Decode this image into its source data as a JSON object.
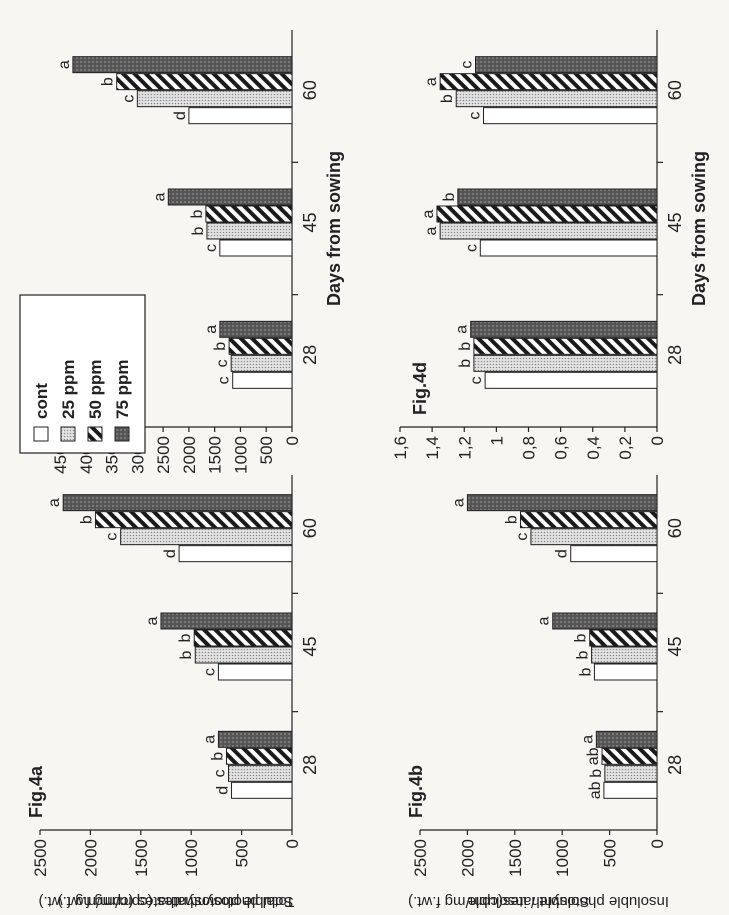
{
  "legend": {
    "items": [
      {
        "label": "cont",
        "pattern": "blank"
      },
      {
        "label": "25 ppm",
        "pattern": "dots"
      },
      {
        "label": "50 ppm",
        "pattern": "stripes"
      },
      {
        "label": "75 ppm",
        "pattern": "dark"
      }
    ]
  },
  "chart_data": [
    {
      "id": "fig4a",
      "type": "bar",
      "panel_label": "Fig.4a",
      "title": "",
      "xlabel": "",
      "ylabel": "Soluble photosynthates (cpm/mg f.wt.)",
      "categories": [
        "28",
        "45",
        "60"
      ],
      "ylim": [
        0,
        2500
      ],
      "yticks": [
        "0",
        "500",
        "1000",
        "1500",
        "2000",
        "2500"
      ],
      "series": [
        {
          "name": "cont",
          "values": [
            600,
            730,
            1120
          ]
        },
        {
          "name": "25 ppm",
          "values": [
            630,
            960,
            1700
          ]
        },
        {
          "name": "50 ppm",
          "values": [
            650,
            970,
            1950
          ]
        },
        {
          "name": "75 ppm",
          "values": [
            730,
            1300,
            2270
          ]
        }
      ],
      "letters": [
        [
          "d",
          "c",
          "b",
          "a"
        ],
        [
          "c",
          "b",
          "b",
          "a"
        ],
        [
          "d",
          "c",
          "b",
          "a"
        ]
      ]
    },
    {
      "id": "fig4b",
      "type": "bar",
      "panel_label": "Fig.4b",
      "title": "",
      "xlabel": "",
      "ylabel": "Insoluble photosynthates(cpm/mg f.wt.)",
      "categories": [
        "28",
        "45",
        "60"
      ],
      "ylim": [
        0,
        2500
      ],
      "yticks": [
        "0",
        "500",
        "1000",
        "1500",
        "2000",
        "2500"
      ],
      "series": [
        {
          "name": "cont",
          "values": [
            560,
            660,
            910
          ]
        },
        {
          "name": "25 ppm",
          "values": [
            550,
            690,
            1330
          ]
        },
        {
          "name": "50 ppm",
          "values": [
            580,
            710,
            1440
          ]
        },
        {
          "name": "75 ppm",
          "values": [
            640,
            1100,
            2000
          ]
        }
      ],
      "letters": [
        [
          "ab",
          "b",
          "ab",
          "a"
        ],
        [
          "b",
          "b",
          "b",
          "a"
        ],
        [
          "d",
          "c",
          "b",
          "a"
        ]
      ]
    },
    {
      "id": "fig4c",
      "type": "bar",
      "panel_label": "Fig.4c",
      "title": "",
      "xlabel": "Days from sowing",
      "ylabel": "Total photosynthates (cpm/mg f.wt.)",
      "categories": [
        "28",
        "45",
        "60"
      ],
      "ylim": [
        0,
        4500
      ],
      "yticks": [
        "0",
        "500",
        "1000",
        "1500",
        "2000",
        "2500",
        "3000",
        "3500",
        "4000",
        "4500"
      ],
      "series": [
        {
          "name": "cont",
          "values": [
            1150,
            1400,
            2000
          ]
        },
        {
          "name": "25 ppm",
          "values": [
            1180,
            1650,
            3000
          ]
        },
        {
          "name": "50 ppm",
          "values": [
            1220,
            1670,
            3400
          ]
        },
        {
          "name": "75 ppm",
          "values": [
            1400,
            2400,
            4250
          ]
        }
      ],
      "letters": [
        [
          "c",
          "c",
          "b",
          "a"
        ],
        [
          "c",
          "b",
          "b",
          "a"
        ],
        [
          "d",
          "c",
          "b",
          "a"
        ]
      ]
    },
    {
      "id": "fig4d",
      "type": "bar",
      "panel_label": "Fig.4d",
      "title": "",
      "xlabel": "Days from sowing",
      "ylabel": "Soluble / insoluble",
      "categories": [
        "28",
        "45",
        "60"
      ],
      "ylim": [
        0,
        1.6
      ],
      "yticks": [
        "0",
        "0,2",
        "0,4",
        "0,6",
        "0,8",
        "1",
        "1,2",
        "1,4",
        "1,6"
      ],
      "series": [
        {
          "name": "cont",
          "values": [
            1.07,
            1.1,
            1.08
          ]
        },
        {
          "name": "25 ppm",
          "values": [
            1.14,
            1.35,
            1.25
          ]
        },
        {
          "name": "50 ppm",
          "values": [
            1.14,
            1.37,
            1.35
          ]
        },
        {
          "name": "75 ppm",
          "values": [
            1.16,
            1.24,
            1.13
          ]
        }
      ],
      "letters": [
        [
          "c",
          "b",
          "b",
          "a"
        ],
        [
          "c",
          "a",
          "a",
          "b"
        ],
        [
          "c",
          "b",
          "a",
          "c"
        ]
      ]
    }
  ]
}
